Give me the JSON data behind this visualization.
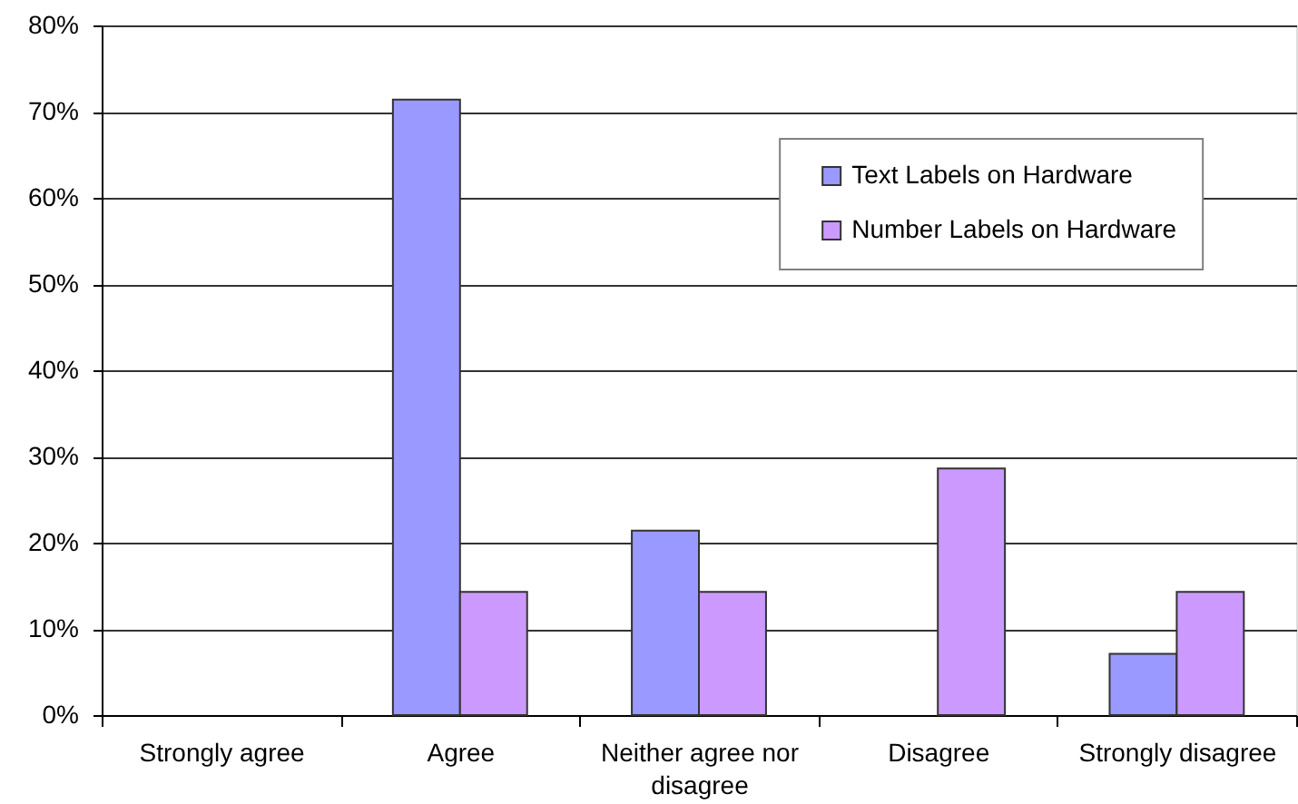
{
  "chart_data": {
    "type": "bar",
    "categories": [
      "Strongly agree",
      "Agree",
      "Neither agree nor disagree",
      "Disagree",
      "Strongly disagree"
    ],
    "series": [
      {
        "name": "Text Labels on Hardware",
        "color": "#9999ff",
        "values": [
          null,
          71.4,
          21.4,
          null,
          7.1
        ]
      },
      {
        "name": "Number Labels on Hardware",
        "color": "#cc99ff",
        "values": [
          null,
          14.3,
          14.3,
          28.6,
          14.3
        ]
      }
    ],
    "ylim": [
      0,
      80
    ],
    "yticks": [
      {
        "value": 0,
        "label": "0%"
      },
      {
        "value": 10,
        "label": "10%"
      },
      {
        "value": 20,
        "label": "20%"
      },
      {
        "value": 30,
        "label": "30%"
      },
      {
        "value": 40,
        "label": "40%"
      },
      {
        "value": 50,
        "label": "50%"
      },
      {
        "value": 60,
        "label": "60%"
      },
      {
        "value": 70,
        "label": "70%"
      },
      {
        "value": 80,
        "label": "80%"
      }
    ],
    "grid": "y",
    "legend": "top right"
  }
}
